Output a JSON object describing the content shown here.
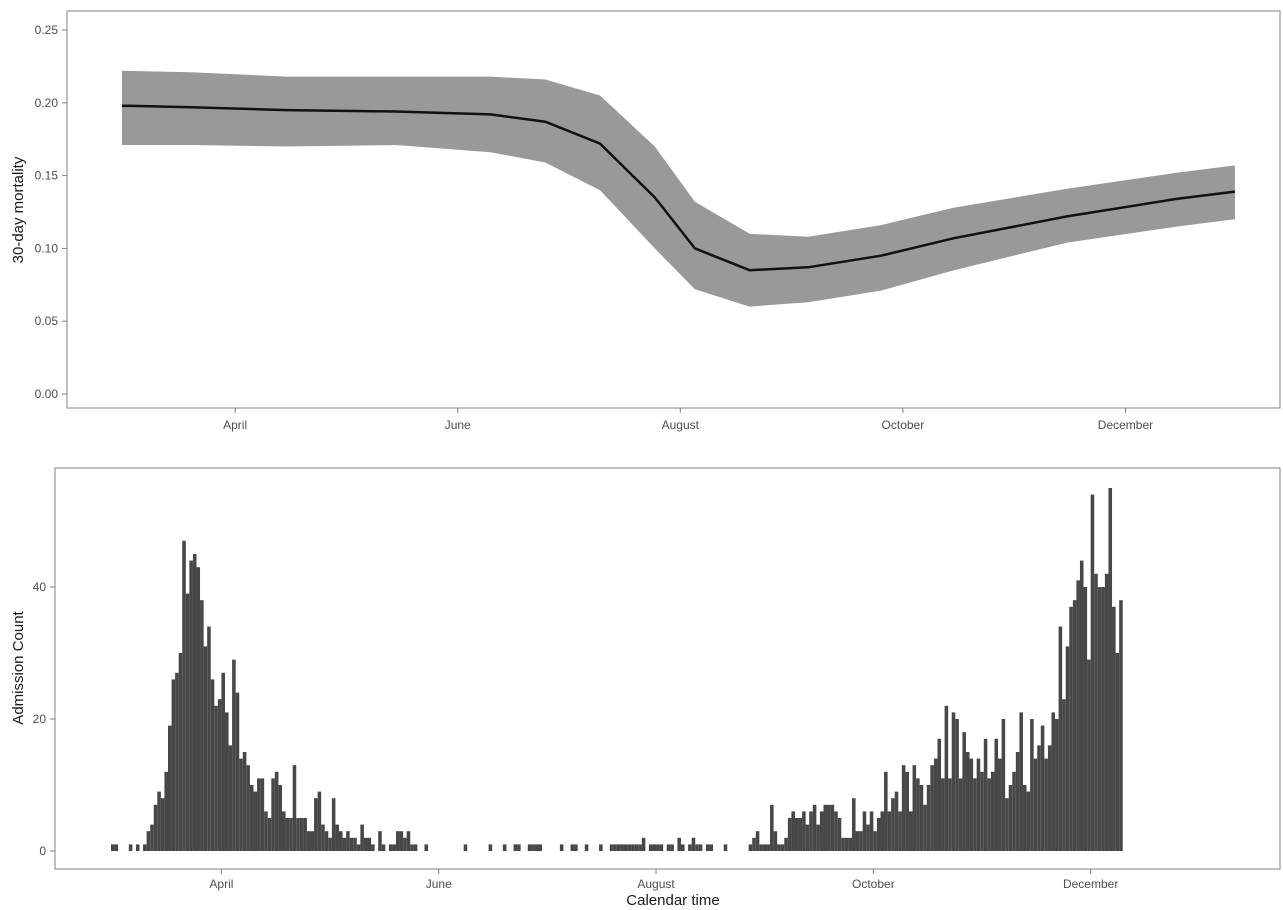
{
  "xlabel": "Calendar time",
  "colors": {
    "band": "#999999",
    "line": "#111111",
    "bars": "#474747",
    "frame": "#808080",
    "tick_text": "#4d4d4d"
  },
  "chart_data": [
    {
      "type": "line",
      "ylabel": "30-day mortality",
      "ylim": [
        0,
        0.25
      ],
      "yticks": [
        "0.00",
        "0.05",
        "0.10",
        "0.15",
        "0.20",
        "0.25"
      ],
      "xticks": [
        "April",
        "June",
        "August",
        "October",
        "December"
      ],
      "grid": false,
      "series": [
        {
          "type": "line",
          "x": [
            "2020-03-01",
            "2020-03-20",
            "2020-04-15",
            "2020-05-15",
            "2020-06-10",
            "2020-06-25",
            "2020-07-10",
            "2020-07-25",
            "2020-08-05",
            "2020-08-20",
            "2020-09-05",
            "2020-09-25",
            "2020-10-15",
            "2020-11-15",
            "2020-12-15",
            "2020-12-31"
          ],
          "y": [
            0.198,
            0.197,
            0.195,
            0.194,
            0.192,
            0.187,
            0.172,
            0.135,
            0.1,
            0.085,
            0.087,
            0.095,
            0.107,
            0.122,
            0.134,
            0.139
          ]
        },
        {
          "type": "band",
          "x": [
            "2020-03-01",
            "2020-03-20",
            "2020-04-15",
            "2020-05-15",
            "2020-06-10",
            "2020-06-25",
            "2020-07-10",
            "2020-07-25",
            "2020-08-05",
            "2020-08-20",
            "2020-09-05",
            "2020-09-25",
            "2020-10-15",
            "2020-11-15",
            "2020-12-15",
            "2020-12-31"
          ],
          "lower": [
            0.171,
            0.171,
            0.17,
            0.171,
            0.166,
            0.159,
            0.14,
            0.1,
            0.072,
            0.06,
            0.063,
            0.071,
            0.085,
            0.104,
            0.115,
            0.12
          ],
          "upper": [
            0.222,
            0.221,
            0.218,
            0.218,
            0.218,
            0.216,
            0.205,
            0.17,
            0.132,
            0.11,
            0.108,
            0.116,
            0.128,
            0.141,
            0.152,
            0.157
          ]
        }
      ]
    },
    {
      "type": "bar",
      "ylabel": "Admission Count",
      "xlabel": "Calendar time",
      "ylim": [
        0,
        56
      ],
      "yticks": [
        "0",
        "20",
        "40"
      ],
      "xticks": [
        "April",
        "June",
        "August",
        "October",
        "December"
      ],
      "grid": false,
      "x_start": "2020-03-01",
      "x_end": "2020-12-31",
      "daily_counts": [
        1,
        1,
        0,
        0,
        0,
        1,
        0,
        1,
        0,
        1,
        3,
        4,
        7,
        9,
        8,
        12,
        19,
        26,
        27,
        30,
        47,
        39,
        44,
        45,
        43,
        38,
        31,
        34,
        26,
        22,
        23,
        27,
        21,
        16,
        29,
        24,
        14,
        15,
        13,
        10,
        9,
        11,
        11,
        6,
        5,
        11,
        12,
        10,
        6,
        5,
        5,
        13,
        5,
        5,
        5,
        3,
        3,
        8,
        9,
        4,
        3,
        2,
        8,
        4,
        3,
        2,
        3,
        2,
        2,
        1,
        4,
        2,
        2,
        1,
        0,
        3,
        1,
        0,
        1,
        1,
        3,
        3,
        2,
        3,
        1,
        1,
        0,
        0,
        1,
        0,
        0,
        0,
        0,
        0,
        0,
        0,
        0,
        0,
        0,
        1,
        0,
        0,
        0,
        0,
        0,
        0,
        1,
        0,
        0,
        0,
        1,
        0,
        0,
        1,
        1,
        0,
        0,
        1,
        1,
        1,
        1,
        0,
        0,
        0,
        0,
        0,
        1,
        0,
        0,
        1,
        1,
        0,
        0,
        1,
        0,
        0,
        0,
        1,
        0,
        0,
        1,
        1,
        1,
        1,
        1,
        1,
        1,
        1,
        1,
        2,
        0,
        1,
        1,
        1,
        1,
        0,
        1,
        1,
        0,
        2,
        1,
        0,
        1,
        2,
        1,
        1,
        0,
        1,
        1,
        0,
        0,
        0,
        1,
        0,
        0,
        0,
        0,
        0,
        0,
        1,
        2,
        3,
        1,
        1,
        1,
        7,
        3,
        1,
        1,
        2,
        5,
        6,
        5,
        5,
        6,
        4,
        6,
        7,
        4,
        6,
        7,
        7,
        7,
        6,
        5,
        2,
        2,
        2,
        8,
        3,
        3,
        6,
        4,
        6,
        3,
        5,
        6,
        12,
        6,
        8,
        9,
        6,
        13,
        12,
        6,
        13,
        11,
        10,
        7,
        10,
        13,
        14,
        17,
        11,
        22,
        11,
        21,
        20,
        11,
        18,
        15,
        14,
        11,
        14,
        12,
        17,
        11,
        12,
        17,
        14,
        20,
        8,
        10,
        12,
        15,
        21,
        10,
        9,
        20,
        14,
        16,
        19,
        14,
        16,
        21,
        20,
        34,
        23,
        31,
        37,
        38,
        41,
        44,
        40,
        29,
        54,
        42,
        40,
        40,
        42,
        55,
        37,
        30,
        38
      ]
    }
  ]
}
